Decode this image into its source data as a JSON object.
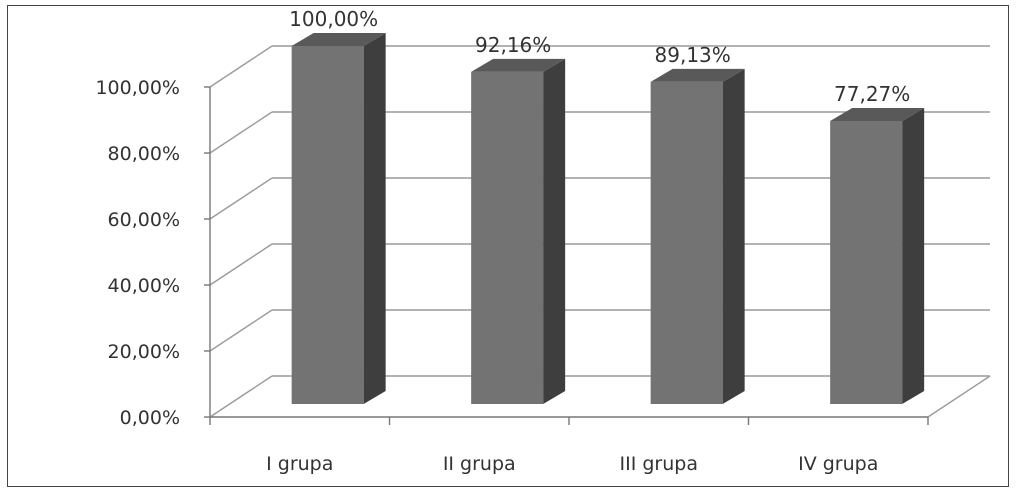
{
  "chart_data": {
    "type": "bar",
    "style": "3d-column",
    "categories": [
      "I grupa",
      "II grupa",
      "III grupa",
      "IV grupa"
    ],
    "values": [
      100.0,
      92.16,
      89.13,
      77.27
    ],
    "data_labels": [
      "100,00%",
      "92,16%",
      "89,13%",
      "77,27%"
    ],
    "y_ticks": [
      "0,00%",
      "20,00%",
      "40,00%",
      "60,00%",
      "80,00%",
      "100,00%"
    ],
    "ylim": [
      0,
      100
    ],
    "grid": true,
    "legend": "none",
    "colors": {
      "bar_front": "#737373",
      "bar_side": "#3e3e3e",
      "bar_top": "#595959",
      "grid": "#9a9a9a",
      "axis": "#777777",
      "text": "#333333"
    }
  }
}
